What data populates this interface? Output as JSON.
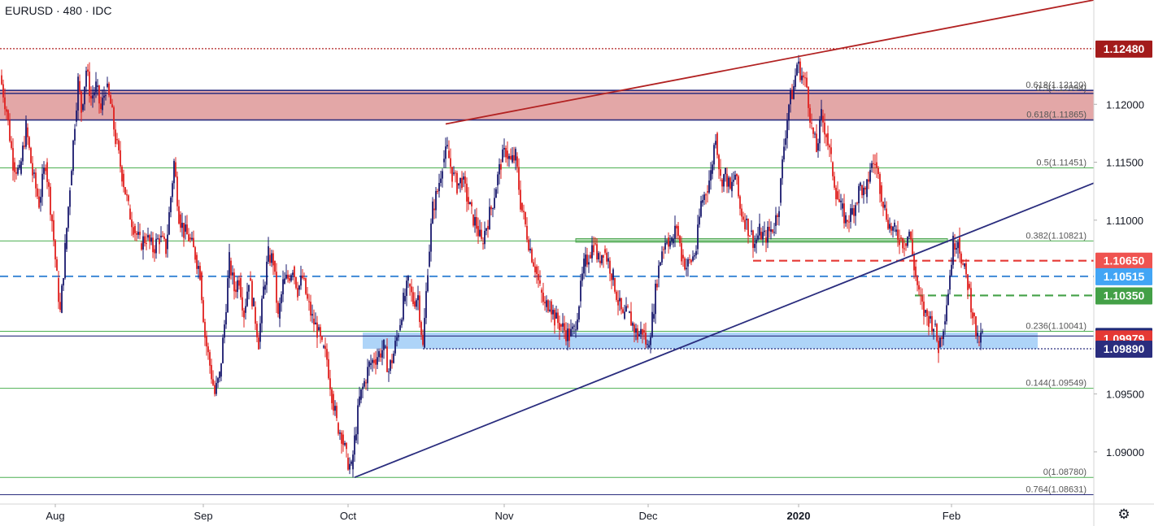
{
  "title": "EURUSD · 480 · IDC",
  "settings_icon": "gear-icon",
  "chart_data": {
    "type": "candlestick",
    "symbol": "EURUSD",
    "interval": "480",
    "source": "IDC",
    "ylim": [
      1.0855,
      1.129
    ],
    "y_ticks": [
      {
        "value": 1.12,
        "label": "1.12000"
      },
      {
        "value": 1.115,
        "label": "1.11500"
      },
      {
        "value": 1.11,
        "label": "1.11000"
      },
      {
        "value": 1.095,
        "label": "1.09500"
      },
      {
        "value": 1.09,
        "label": "1.09000"
      }
    ],
    "x_ticks": [
      {
        "t": 68,
        "label": "Aug",
        "bold": false
      },
      {
        "t": 250,
        "label": "Sep",
        "bold": false
      },
      {
        "t": 428,
        "label": "Oct",
        "bold": false
      },
      {
        "t": 620,
        "label": "Nov",
        "bold": false
      },
      {
        "t": 797,
        "label": "Dec",
        "bold": false
      },
      {
        "t": 982,
        "label": "2020",
        "bold": true
      },
      {
        "t": 1170,
        "label": "Feb",
        "bold": false
      }
    ],
    "candles_path": [
      [
        0,
        1.1225
      ],
      [
        8,
        1.1195
      ],
      [
        16,
        1.115
      ],
      [
        24,
        1.114
      ],
      [
        32,
        1.118
      ],
      [
        40,
        1.114
      ],
      [
        48,
        1.1115
      ],
      [
        56,
        1.115
      ],
      [
        64,
        1.11
      ],
      [
        70,
        1.105
      ],
      [
        74,
        1.102
      ],
      [
        80,
        1.1075
      ],
      [
        86,
        1.113
      ],
      [
        92,
        1.1185
      ],
      [
        96,
        1.122
      ],
      [
        100,
        1.1195
      ],
      [
        106,
        1.123
      ],
      [
        112,
        1.1205
      ],
      [
        118,
        1.1215
      ],
      [
        124,
        1.1195
      ],
      [
        130,
        1.1215
      ],
      [
        136,
        1.12
      ],
      [
        142,
        1.117
      ],
      [
        150,
        1.114
      ],
      [
        158,
        1.111
      ],
      [
        164,
        1.1095
      ],
      [
        172,
        1.108
      ],
      [
        180,
        1.1085
      ],
      [
        188,
        1.1075
      ],
      [
        196,
        1.1085
      ],
      [
        204,
        1.1075
      ],
      [
        210,
        1.112
      ],
      [
        214,
        1.115
      ],
      [
        220,
        1.1105
      ],
      [
        226,
        1.109
      ],
      [
        232,
        1.1085
      ],
      [
        240,
        1.107
      ],
      [
        246,
        1.1055
      ],
      [
        252,
        1.1
      ],
      [
        258,
        1.0975
      ],
      [
        264,
        1.095
      ],
      [
        270,
        1.0965
      ],
      [
        276,
        1.101
      ],
      [
        282,
        1.1065
      ],
      [
        288,
        1.104
      ],
      [
        294,
        1.105
      ],
      [
        300,
        1.102
      ],
      [
        306,
        1.105
      ],
      [
        312,
        1.1025
      ],
      [
        318,
        1.0995
      ],
      [
        324,
        1.104
      ],
      [
        330,
        1.107
      ],
      [
        336,
        1.1065
      ],
      [
        342,
        1.1015
      ],
      [
        348,
        1.1045
      ],
      [
        354,
        1.105
      ],
      [
        360,
        1.106
      ],
      [
        366,
        1.104
      ],
      [
        372,
        1.105
      ],
      [
        378,
        1.103
      ],
      [
        384,
        1.1015
      ],
      [
        390,
        1.1005
      ],
      [
        396,
        1.099
      ],
      [
        402,
        1.098
      ],
      [
        408,
        1.095
      ],
      [
        414,
        1.0925
      ],
      [
        420,
        1.0915
      ],
      [
        426,
        1.0895
      ],
      [
        432,
        1.0885
      ],
      [
        436,
        1.091
      ],
      [
        442,
        1.0945
      ],
      [
        448,
        1.096
      ],
      [
        454,
        1.0975
      ],
      [
        460,
        1.098
      ],
      [
        466,
        1.0985
      ],
      [
        472,
        1.099
      ],
      [
        478,
        1.097
      ],
      [
        484,
        1.0985
      ],
      [
        490,
        1.1005
      ],
      [
        496,
        1.103
      ],
      [
        502,
        1.1045
      ],
      [
        508,
        1.103
      ],
      [
        514,
        1.1035
      ],
      [
        520,
        1.099
      ],
      [
        526,
        1.106
      ],
      [
        532,
        1.111
      ],
      [
        538,
        1.1125
      ],
      [
        544,
        1.115
      ],
      [
        550,
        1.116
      ],
      [
        556,
        1.114
      ],
      [
        562,
        1.113
      ],
      [
        568,
        1.1135
      ],
      [
        574,
        1.112
      ],
      [
        580,
        1.1105
      ],
      [
        586,
        1.1095
      ],
      [
        592,
        1.108
      ],
      [
        598,
        1.1095
      ],
      [
        604,
        1.111
      ],
      [
        610,
        1.113
      ],
      [
        616,
        1.115
      ],
      [
        622,
        1.116
      ],
      [
        628,
        1.115
      ],
      [
        634,
        1.1155
      ],
      [
        640,
        1.1115
      ],
      [
        646,
        1.1095
      ],
      [
        652,
        1.1075
      ],
      [
        658,
        1.106
      ],
      [
        664,
        1.104
      ],
      [
        670,
        1.1025
      ],
      [
        676,
        1.103
      ],
      [
        682,
        1.1015
      ],
      [
        688,
        1.101
      ],
      [
        694,
        1.1005
      ],
      [
        700,
        1.1
      ],
      [
        706,
        1.1005
      ],
      [
        712,
        1.103
      ],
      [
        718,
        1.106
      ],
      [
        724,
        1.107
      ],
      [
        730,
        1.108
      ],
      [
        736,
        1.1065
      ],
      [
        742,
        1.1075
      ],
      [
        748,
        1.1065
      ],
      [
        754,
        1.105
      ],
      [
        760,
        1.103
      ],
      [
        766,
        1.1015
      ],
      [
        772,
        1.102
      ],
      [
        778,
        1.101
      ],
      [
        784,
        1.1
      ],
      [
        790,
        1.1005
      ],
      [
        796,
        1.099
      ],
      [
        802,
        1.1015
      ],
      [
        808,
        1.105
      ],
      [
        814,
        1.1075
      ],
      [
        820,
        1.1085
      ],
      [
        826,
        1.108
      ],
      [
        832,
        1.1095
      ],
      [
        838,
        1.107
      ],
      [
        844,
        1.106
      ],
      [
        850,
        1.1065
      ],
      [
        856,
        1.1075
      ],
      [
        862,
        1.1115
      ],
      [
        868,
        1.1125
      ],
      [
        874,
        1.114
      ],
      [
        880,
        1.1175
      ],
      [
        886,
        1.1135
      ],
      [
        892,
        1.114
      ],
      [
        898,
        1.1125
      ],
      [
        904,
        1.114
      ],
      [
        910,
        1.111
      ],
      [
        916,
        1.11
      ],
      [
        922,
        1.109
      ],
      [
        928,
        1.108
      ],
      [
        934,
        1.109
      ],
      [
        940,
        1.1085
      ],
      [
        946,
        1.109
      ],
      [
        952,
        1.1095
      ],
      [
        958,
        1.1115
      ],
      [
        964,
        1.1165
      ],
      [
        970,
        1.12
      ],
      [
        976,
        1.1215
      ],
      [
        980,
        1.1235
      ],
      [
        986,
        1.1225
      ],
      [
        992,
        1.1215
      ],
      [
        998,
        1.118
      ],
      [
        1004,
        1.116
      ],
      [
        1010,
        1.119
      ],
      [
        1016,
        1.1175
      ],
      [
        1022,
        1.115
      ],
      [
        1028,
        1.1125
      ],
      [
        1034,
        1.111
      ],
      [
        1040,
        1.11
      ],
      [
        1046,
        1.1105
      ],
      [
        1052,
        1.1115
      ],
      [
        1058,
        1.113
      ],
      [
        1064,
        1.112
      ],
      [
        1070,
        1.1145
      ],
      [
        1076,
        1.115
      ],
      [
        1082,
        1.113
      ],
      [
        1088,
        1.111
      ],
      [
        1094,
        1.1095
      ],
      [
        1100,
        1.109
      ],
      [
        1106,
        1.1085
      ],
      [
        1112,
        1.108
      ],
      [
        1118,
        1.109
      ],
      [
        1124,
        1.106
      ],
      [
        1130,
        1.1035
      ],
      [
        1136,
        1.102
      ],
      [
        1142,
        1.1015
      ],
      [
        1148,
        1.101
      ],
      [
        1154,
        1.099
      ],
      [
        1160,
        1.101
      ],
      [
        1166,
        1.104
      ],
      [
        1172,
        1.108
      ],
      [
        1178,
        1.1085
      ],
      [
        1184,
        1.106
      ],
      [
        1190,
        1.1045
      ],
      [
        1196,
        1.102
      ],
      [
        1202,
        1.0995
      ],
      [
        1208,
        1.1
      ]
    ],
    "fib_levels": [
      {
        "label": "0.618(1.12120)",
        "value": 1.1212
      },
      {
        "label": "0.5(1.12094)",
        "value": 1.12094
      },
      {
        "label": "0.618(1.11865)",
        "value": 1.11865
      },
      {
        "label": "0.5(1.11451)",
        "value": 1.11451
      },
      {
        "label": "0.382(1.10821)",
        "value": 1.10821
      },
      {
        "label": "0.236(1.10041)",
        "value": 1.10041
      },
      {
        "label": "0.144(1.09549)",
        "value": 1.09549
      },
      {
        "label": "0(1.08780)",
        "value": 1.0878
      },
      {
        "label": "0.764(1.08631)",
        "value": 1.08631
      }
    ],
    "zones": [
      {
        "name": "resistance-zone",
        "from": 1.11865,
        "to": 1.1212,
        "t_start": 0,
        "t_end": 1345,
        "color": "#d98a8a"
      },
      {
        "name": "support-zone",
        "from": 1.0989,
        "to": 1.1003,
        "t_start": 446,
        "t_end": 1276,
        "color": "#93c5f5"
      },
      {
        "name": "mini-zone",
        "from": 1.1081,
        "to": 1.1084,
        "t_start": 708,
        "t_end": 1165,
        "color": "#a5d6a7"
      }
    ],
    "trendlines": [
      {
        "name": "upper-trendline",
        "from": [
          548,
          1.1183
        ],
        "to": [
          1345,
          1.129
        ],
        "color": "#b22222"
      },
      {
        "name": "rising-trendline",
        "from": [
          436,
          1.0878
        ],
        "to": [
          1345,
          1.1132
        ],
        "color": "#2a2d7e"
      }
    ],
    "level_lines": [
      {
        "value": 1.1248,
        "color": "#b22222",
        "style": "dotted",
        "t_start": 0,
        "t_end": 1345
      },
      {
        "value": 1.10515,
        "color": "#4a90d9",
        "style": "dashed",
        "t_start": 0,
        "t_end": 1345
      },
      {
        "value": 1.1065,
        "color": "#e53935",
        "style": "dashed",
        "t_start": 926,
        "t_end": 1345
      },
      {
        "value": 1.1035,
        "color": "#43a047",
        "style": "dashed",
        "t_start": 1125,
        "t_end": 1345
      },
      {
        "value": 1.1,
        "color": "#2a2d7e",
        "style": "solid",
        "t_start": 0,
        "t_end": 1345
      },
      {
        "value": 1.0989,
        "color": "#2a2d7e",
        "style": "dotted",
        "t_start": 520,
        "t_end": 1345
      }
    ],
    "price_tags": [
      {
        "value": 1.1248,
        "label": "1.12480",
        "color": "#a31b1b"
      },
      {
        "value": 1.1065,
        "label": "1.10650",
        "color": "#ef5350"
      },
      {
        "value": 1.10515,
        "label": "1.10515",
        "color": "#42a5f5"
      },
      {
        "value": 1.1035,
        "label": "1.10350",
        "color": "#43a047"
      },
      {
        "value": 1.1,
        "label": "1.10000",
        "color": "#1f2a78"
      },
      {
        "value": 1.09979,
        "label": "1.09979",
        "color": "#e53935"
      },
      {
        "value": 1.0989,
        "label": "1.09890",
        "color": "#2a2d7e"
      }
    ]
  }
}
